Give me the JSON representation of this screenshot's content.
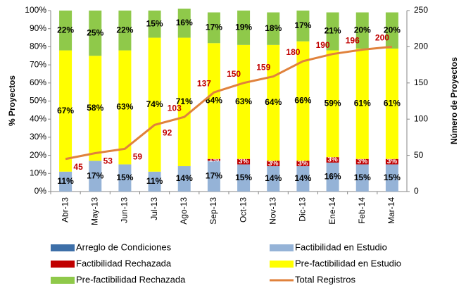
{
  "chart_data": {
    "type": "stacked_bar_line",
    "categories": [
      "Abr-13",
      "May-13",
      "Jun-13",
      "Jul-13",
      "Ago-13",
      "Sep-13",
      "Oct-13",
      "Nov-13",
      "Dic-13",
      "Ene-14",
      "Feb-14",
      "Mar-14"
    ],
    "ylabel": "% Proyectos",
    "y2label": "Número de Proyectos",
    "ylim": [
      0,
      100
    ],
    "yticks": [
      {
        "value": 0,
        "label": "0%"
      },
      {
        "value": 10,
        "label": "10%"
      },
      {
        "value": 20,
        "label": "20%"
      },
      {
        "value": 30,
        "label": "30%"
      },
      {
        "value": 40,
        "label": "40%"
      },
      {
        "value": 50,
        "label": "50%"
      },
      {
        "value": 60,
        "label": "60%"
      },
      {
        "value": 70,
        "label": "70%"
      },
      {
        "value": 80,
        "label": "80%"
      },
      {
        "value": 90,
        "label": "90%"
      },
      {
        "value": 100,
        "label": "100%"
      }
    ],
    "y2lim": [
      0,
      250
    ],
    "y2ticks": [
      0,
      50,
      100,
      150,
      200,
      250
    ],
    "grid": false,
    "legend": "bottom",
    "series": [
      {
        "name": "Arreglo de Condiciones",
        "color": "#3d6fa8",
        "values": [
          0,
          0,
          0,
          0,
          0,
          0,
          0,
          0,
          0,
          0,
          0,
          0
        ]
      },
      {
        "name": "Factibilidad en Estudio",
        "color": "#95b3d7",
        "values": [
          11,
          17,
          15,
          11,
          14,
          17,
          15,
          14,
          14,
          16,
          15,
          15
        ],
        "value_labels": [
          "11%",
          "17%",
          "15%",
          "11%",
          "14%",
          "17%",
          "15%",
          "14%",
          "14%",
          "16%",
          "15%",
          "15%"
        ]
      },
      {
        "name": "Factibilidad Rechazada",
        "color": "#c00000",
        "values": [
          0,
          0,
          0,
          0,
          0,
          1,
          3,
          3,
          3,
          3,
          3,
          3
        ],
        "value_labels": [
          null,
          null,
          null,
          null,
          null,
          "1%",
          "3%",
          "3%",
          "3%",
          "3%",
          "3%",
          "3%"
        ]
      },
      {
        "name": "Pre-factibilidad en Estudio",
        "color": "#ffff00",
        "values": [
          67,
          58,
          63,
          74,
          71,
          64,
          63,
          64,
          66,
          59,
          61,
          61
        ],
        "value_labels": [
          "67%",
          "58%",
          "63%",
          "74%",
          "71%",
          "64%",
          "63%",
          "64%",
          "66%",
          "59%",
          "61%",
          "61%"
        ]
      },
      {
        "name": "Pre-factibilidad Rechazada",
        "color": "#8fc94a",
        "values": [
          22,
          25,
          22,
          15,
          16,
          17,
          19,
          18,
          17,
          21,
          20,
          20
        ],
        "value_labels": [
          "22%",
          "25%",
          "22%",
          "15%",
          "16%",
          "17%",
          "19%",
          "18%",
          "17%",
          "21%",
          "20%",
          "20%"
        ]
      },
      {
        "name": "Total Registros",
        "color": "#e0823c",
        "axis": "y2",
        "type": "line",
        "label_color": "#c00000",
        "values": [
          45,
          53,
          59,
          92,
          103,
          137,
          150,
          159,
          180,
          190,
          196,
          200
        ]
      }
    ]
  }
}
